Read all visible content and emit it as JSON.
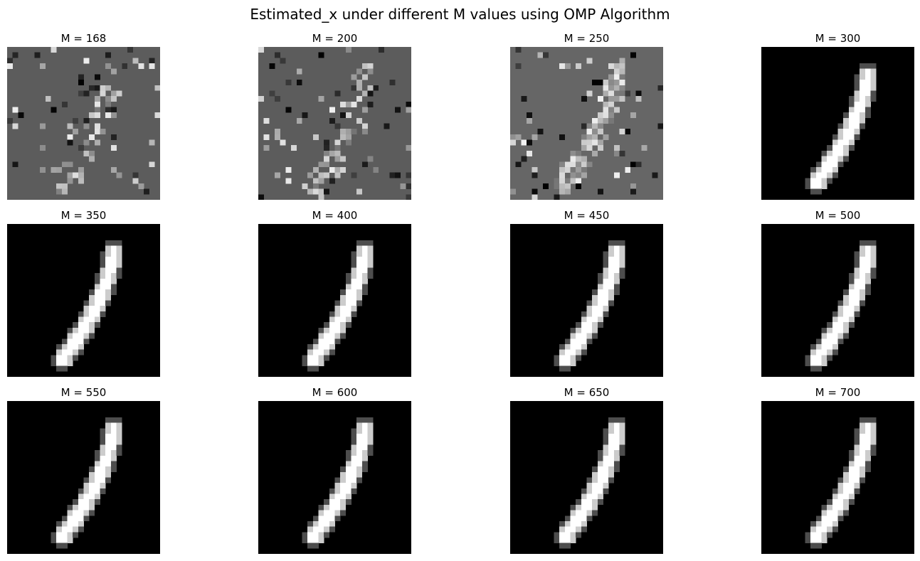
{
  "chart_data": {
    "type": "heatmap",
    "title": "Estimated_x under different M values using OMP Algorithm",
    "colormap": "gray",
    "panels": [
      {
        "label": "M = 168",
        "M": 168
      },
      {
        "label": "M = 200",
        "M": 200
      },
      {
        "label": "M = 250",
        "M": 250
      },
      {
        "label": "M = 300",
        "M": 300
      },
      {
        "label": "M = 350",
        "M": 350
      },
      {
        "label": "M = 400",
        "M": 400
      },
      {
        "label": "M = 450",
        "M": 450
      },
      {
        "label": "M = 500",
        "M": 500
      },
      {
        "label": "M = 550",
        "M": 550
      },
      {
        "label": "M = 600",
        "M": 600
      },
      {
        "label": "M = 650",
        "M": 650
      },
      {
        "label": "M = 700",
        "M": 700
      }
    ]
  }
}
